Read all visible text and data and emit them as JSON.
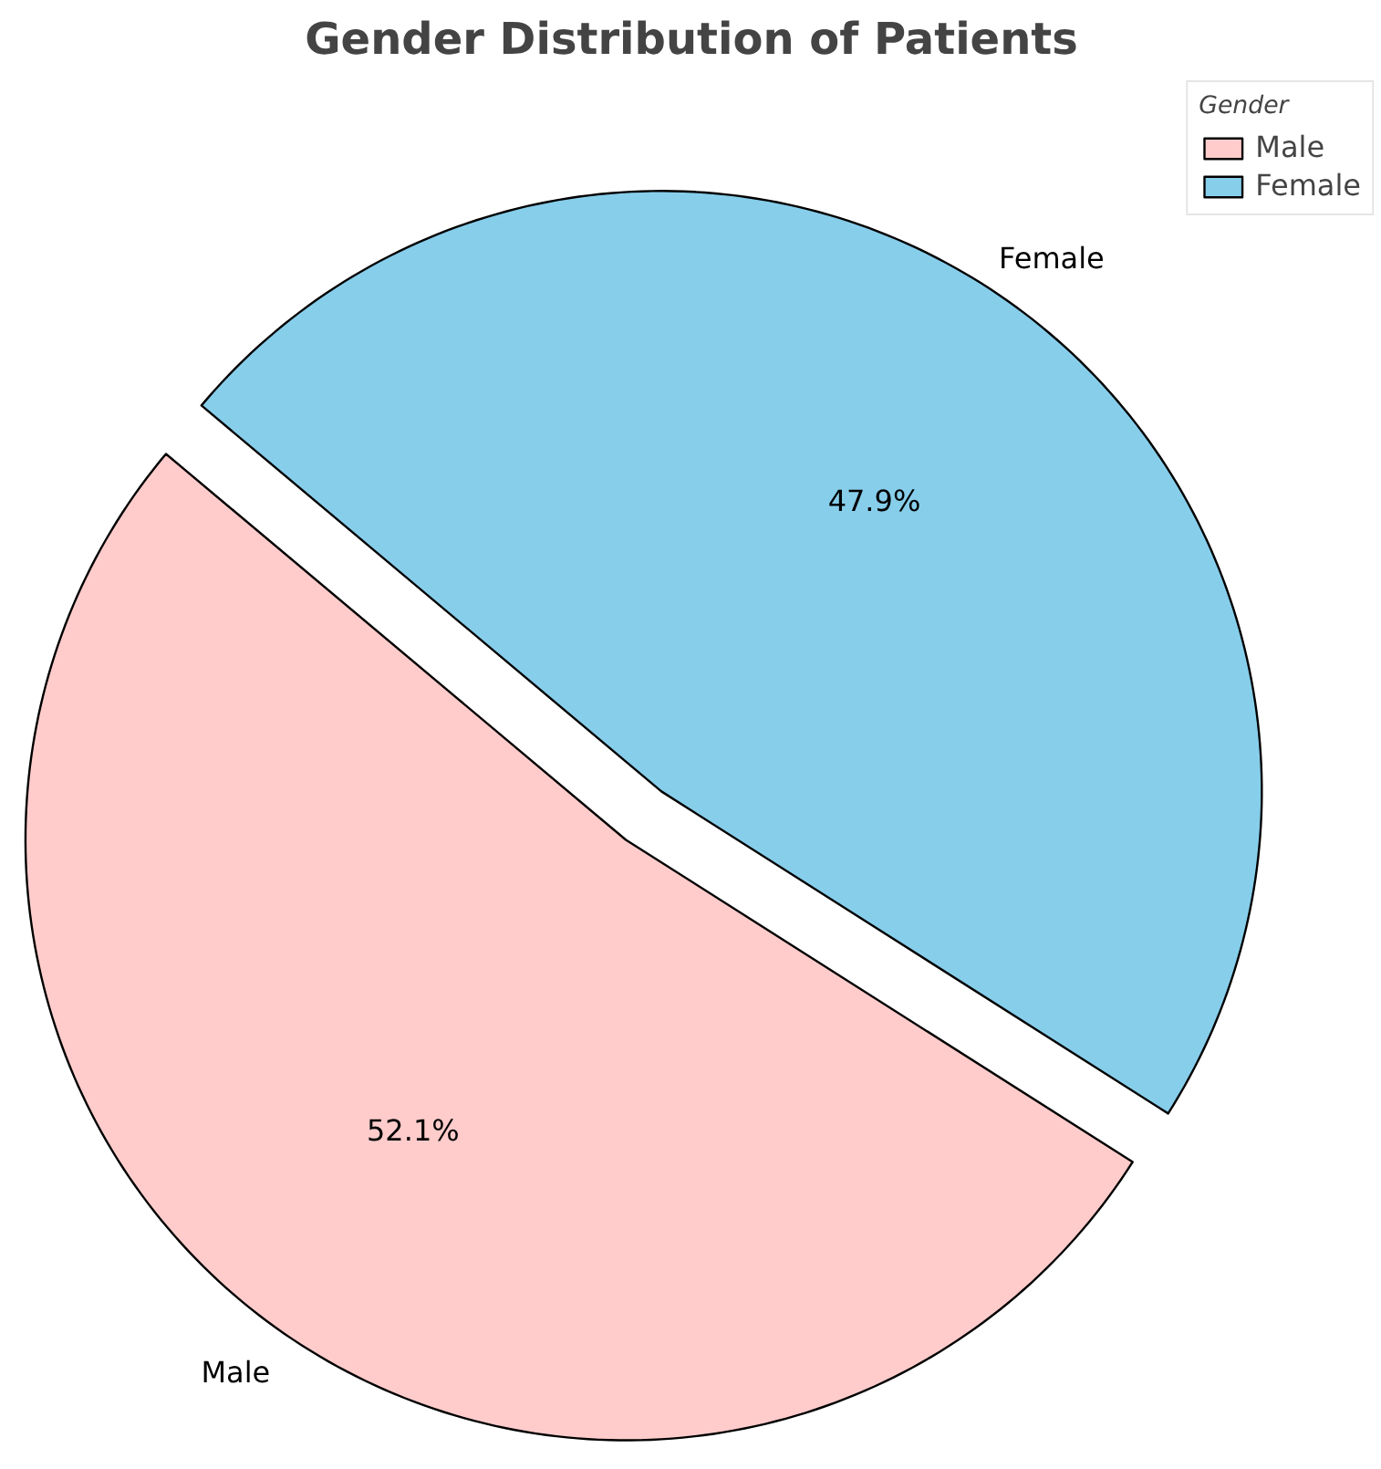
{
  "chart_data": {
    "type": "pie",
    "title": "Gender Distribution of Patients",
    "legend_title": "Gender",
    "legend": "top right",
    "categories": [
      "Male",
      "Female"
    ],
    "values": [
      52.1,
      47.9
    ],
    "colors": [
      "#ffcccb",
      "#87ceeb"
    ],
    "value_labels": [
      "52.1%",
      "47.9%"
    ]
  }
}
